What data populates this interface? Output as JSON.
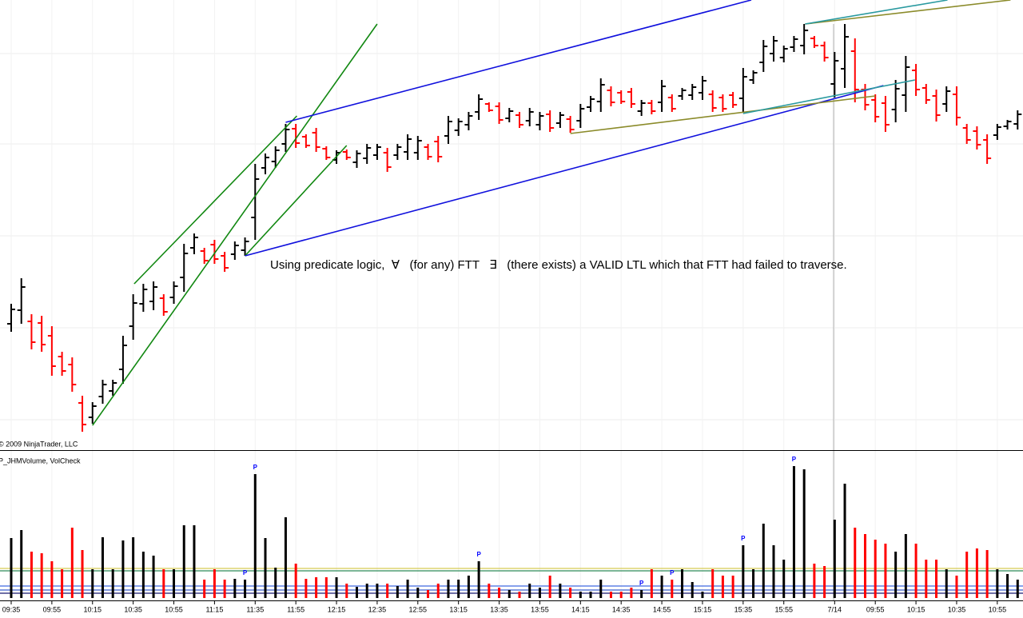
{
  "chart_data": {
    "type": "ohlc",
    "annotation": "Using predicate logic,  ∀   (for any) FTT   ∃   (there exists) a VALID LTL which that FTT had failed to traverse.",
    "copyright": "© 2009 NinjaTrader, LLC",
    "volume_label": "P_JHMVolume, VolCheck",
    "up_color": "#000000",
    "down_color": "#ff0000",
    "ylim": [
      0,
      560
    ],
    "ygrid": [
      493,
      380,
      265,
      150,
      35
    ],
    "volume_ylim": [
      0,
      185
    ],
    "categories": [
      "09:35",
      null,
      null,
      null,
      "09:55",
      null,
      null,
      null,
      "10:15",
      null,
      null,
      null,
      "10:35",
      null,
      null,
      null,
      "10:55",
      null,
      null,
      null,
      "11:15",
      null,
      null,
      null,
      "11:35",
      null,
      null,
      null,
      "11:55",
      null,
      null,
      null,
      "12:15",
      null,
      null,
      null,
      "12:35",
      null,
      null,
      null,
      "12:55",
      null,
      null,
      null,
      "13:15",
      null,
      null,
      null,
      "13:35",
      null,
      null,
      null,
      "13:55",
      null,
      null,
      null,
      "14:15",
      null,
      null,
      null,
      "14:35",
      null,
      null,
      null,
      "14:55",
      null,
      null,
      null,
      "15:15",
      null,
      null,
      null,
      "15:35",
      null,
      null,
      null,
      "15:55",
      null,
      null,
      null,
      null,
      "7/14",
      null,
      null,
      null,
      "09:55",
      null,
      null,
      null,
      "10:15",
      null,
      null,
      null,
      "10:35",
      null,
      null,
      null,
      "10:55",
      null,
      null
    ],
    "high": [
      180,
      212,
      167,
      165,
      152,
      120,
      113,
      65,
      57,
      85,
      85,
      140,
      192,
      205,
      208,
      192,
      208,
      255,
      268,
      250,
      260,
      245,
      258,
      263,
      355,
      368,
      377,
      405,
      405,
      392,
      400,
      377,
      372,
      373,
      372,
      380,
      380,
      375,
      380,
      392,
      390,
      380,
      390,
      415,
      412,
      420,
      442,
      432,
      432,
      425,
      420,
      425,
      420,
      422,
      420,
      415,
      430,
      440,
      462,
      452,
      447,
      450,
      435,
      435,
      460,
      442,
      450,
      455,
      465,
      447,
      442,
      445,
      475,
      472,
      510,
      515,
      503,
      515,
      530,
      515,
      508,
      495,
      530,
      512,
      455,
      442,
      440,
      460,
      490,
      480,
      455,
      448,
      452,
      452,
      405,
      402,
      392,
      405,
      410,
      422
    ],
    "low": [
      145,
      155,
      123,
      120,
      90,
      90,
      70,
      20,
      30,
      55,
      65,
      80,
      135,
      170,
      172,
      165,
      180,
      195,
      242,
      230,
      230,
      220,
      235,
      240,
      260,
      342,
      350,
      370,
      375,
      375,
      370,
      360,
      355,
      360,
      350,
      355,
      360,
      345,
      360,
      360,
      360,
      360,
      357,
      380,
      390,
      397,
      410,
      420,
      405,
      407,
      400,
      402,
      397,
      395,
      400,
      394,
      400,
      420,
      420,
      427,
      430,
      425,
      415,
      417,
      420,
      420,
      435,
      435,
      435,
      420,
      420,
      425,
      420,
      455,
      470,
      483,
      482,
      495,
      492,
      500,
      483,
      438,
      450,
      432,
      422,
      407,
      395,
      407,
      420,
      440,
      430,
      408,
      420,
      403,
      380,
      373,
      355,
      385,
      398,
      398
    ],
    "open": [
      155,
      172,
      158,
      156,
      140,
      114,
      104,
      56,
      38,
      64,
      71,
      98,
      152,
      180,
      183,
      187,
      188,
      213,
      250,
      246,
      254,
      240,
      242,
      247,
      288,
      350,
      358,
      380,
      399,
      389,
      394,
      374,
      360,
      370,
      357,
      362,
      366,
      369,
      366,
      370,
      369,
      376,
      383,
      390,
      397,
      404,
      420,
      430,
      427,
      412,
      416,
      409,
      404,
      417,
      406,
      411,
      409,
      426,
      433,
      447,
      444,
      445,
      421,
      431,
      432,
      438,
      440,
      441,
      444,
      442,
      438,
      441,
      437,
      460,
      482,
      493,
      488,
      501,
      503,
      512,
      503,
      455,
      474,
      496,
      448,
      435,
      431,
      423,
      441,
      472,
      450,
      440,
      430,
      442,
      400,
      396,
      385,
      391,
      402,
      405
    ],
    "close": [
      173,
      201,
      132,
      129,
      102,
      96,
      79,
      29,
      52,
      79,
      81,
      128,
      181,
      198,
      201,
      170,
      202,
      243,
      263,
      234,
      236,
      225,
      253,
      258,
      336,
      363,
      372,
      398,
      381,
      378,
      376,
      363,
      369,
      363,
      368,
      375,
      376,
      351,
      376,
      386,
      384,
      364,
      364,
      408,
      408,
      415,
      436,
      422,
      410,
      421,
      404,
      420,
      415,
      400,
      416,
      398,
      424,
      436,
      454,
      432,
      433,
      430,
      431,
      421,
      452,
      424,
      447,
      451,
      459,
      425,
      424,
      429,
      464,
      469,
      502,
      509,
      499,
      511,
      522,
      503,
      488,
      484,
      514,
      448,
      429,
      414,
      404,
      449,
      476,
      448,
      435,
      416,
      446,
      413,
      385,
      379,
      362,
      401,
      408,
      417
    ],
    "volume": [
      75,
      85,
      58,
      56,
      46,
      36,
      88,
      60,
      36,
      76,
      36,
      72,
      76,
      58,
      53,
      36,
      36,
      91,
      91,
      23,
      36,
      23,
      24,
      23,
      155,
      75,
      38,
      101,
      43,
      24,
      26,
      26,
      26,
      18,
      14,
      18,
      18,
      18,
      15,
      23,
      13,
      10,
      18,
      23,
      23,
      28,
      46,
      18,
      13,
      10,
      8,
      18,
      13,
      28,
      18,
      13,
      8,
      8,
      23,
      8,
      8,
      13,
      10,
      36,
      28,
      23,
      36,
      20,
      8,
      36,
      28,
      28,
      66,
      36,
      93,
      66,
      48,
      165,
      161,
      43,
      40,
      98,
      143,
      88,
      80,
      73,
      68,
      58,
      80,
      68,
      48,
      48,
      36,
      28,
      58,
      62,
      60,
      36,
      30,
      23
    ],
    "volume_flags": [
      null,
      null,
      null,
      null,
      null,
      null,
      null,
      null,
      null,
      null,
      null,
      null,
      null,
      null,
      null,
      null,
      null,
      null,
      null,
      null,
      null,
      null,
      null,
      "P",
      "P",
      null,
      null,
      null,
      null,
      null,
      null,
      null,
      null,
      null,
      null,
      null,
      null,
      null,
      null,
      null,
      null,
      null,
      null,
      null,
      null,
      null,
      "P",
      null,
      null,
      null,
      null,
      null,
      null,
      null,
      null,
      null,
      null,
      null,
      null,
      null,
      null,
      null,
      "P",
      null,
      null,
      "P",
      null,
      null,
      null,
      null,
      null,
      null,
      "P",
      null,
      null,
      null,
      null,
      "P",
      null,
      null,
      null,
      null,
      null,
      null,
      null,
      null,
      null,
      null,
      null,
      null,
      null,
      null,
      null,
      null,
      null,
      null,
      null,
      null,
      null,
      null
    ],
    "volume_levels": [
      {
        "value": 37,
        "color": "#d8cc55"
      },
      {
        "value": 34,
        "color": "#2e8b57"
      },
      {
        "value": 15,
        "color": "#4169e1"
      },
      {
        "value": 10,
        "color": "#3a5fcd"
      },
      {
        "value": 6,
        "color": "#191970"
      }
    ],
    "trend_lines": [
      {
        "x": [
          8.0,
          36.0
        ],
        "y": [
          28,
          530
        ],
        "color": "#118811"
      },
      {
        "x": [
          12.1,
          28.1
        ],
        "y": [
          205,
          415
        ],
        "color": "#118811"
      },
      {
        "x": [
          23.0,
          33.0
        ],
        "y": [
          240,
          378
        ],
        "color": "#118811"
      },
      {
        "x": [
          27.0,
          72.8
        ],
        "y": [
          407,
          560
        ],
        "color": "#1010dd"
      },
      {
        "x": [
          23.0,
          85.8
        ],
        "y": [
          240,
          453
        ],
        "color": "#1010dd"
      },
      {
        "x": [
          55.0,
          85.0
        ],
        "y": [
          393,
          440
        ],
        "color": "#8b8b2a"
      },
      {
        "x": [
          78.1,
          98.3
        ],
        "y": [
          530,
          560
        ],
        "color": "#8b8b2a"
      },
      {
        "x": [
          78.1,
          92.1
        ],
        "y": [
          530,
          560
        ],
        "color": "#2a9aa0"
      },
      {
        "x": [
          72.0,
          88.9
        ],
        "y": [
          418,
          460
        ],
        "color": "#2a9aa0"
      }
    ]
  }
}
